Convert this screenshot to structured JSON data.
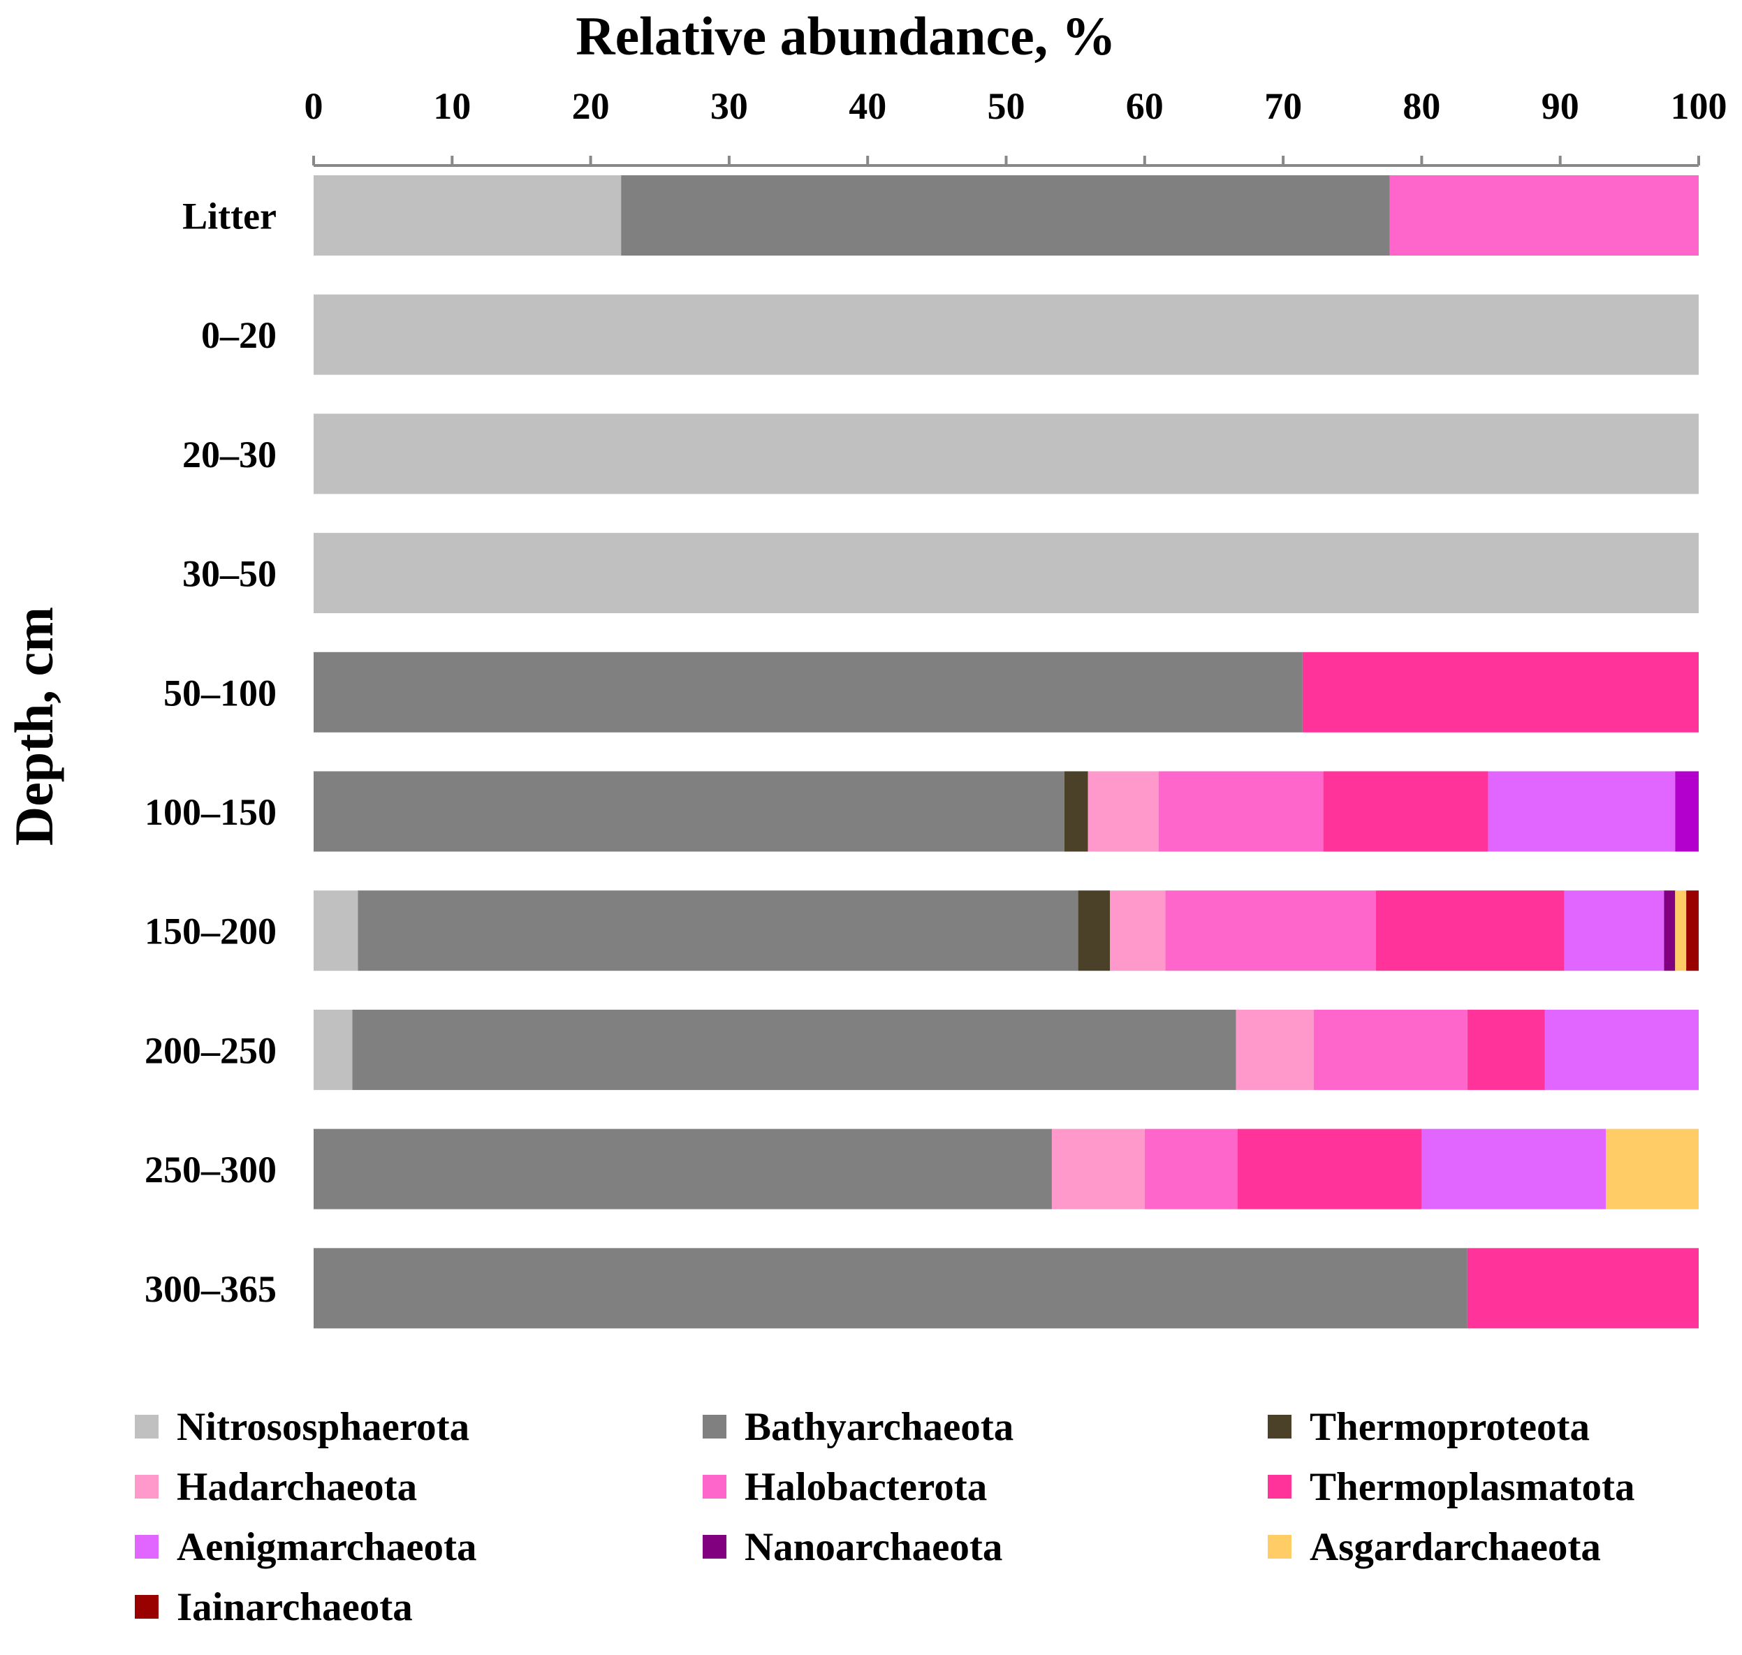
{
  "chart_data": {
    "type": "bar",
    "orientation": "horizontal",
    "stacked": true,
    "title": "Relative abundance, %",
    "xlabel": "Relative abundance, %",
    "ylabel": "Depth, cm",
    "xlim": [
      0,
      100
    ],
    "x_ticks": [
      "0",
      "10",
      "20",
      "30",
      "40",
      "50",
      "60",
      "70",
      "80",
      "90",
      "100"
    ],
    "x_axis_position": "top",
    "grid": false,
    "legend_position": "bottom",
    "categories": [
      "Litter",
      "0–20",
      "20–30",
      "30–50",
      "50–100",
      "100–150",
      "150–200",
      "200–250",
      "250–300",
      "300–365"
    ],
    "series": [
      {
        "name": "Nitrososphaerota",
        "color": "#C0C0C0",
        "values": [
          22.2,
          100,
          100,
          100,
          0,
          0,
          3.2,
          2.8,
          0,
          0
        ]
      },
      {
        "name": "Bathyarchaeota",
        "color": "#808080",
        "values": [
          55.5,
          0,
          0,
          0,
          71.4,
          54.2,
          52.0,
          63.8,
          53.3,
          83.3
        ]
      },
      {
        "name": "Thermoproteota",
        "color": "#4B4128",
        "values": [
          0,
          0,
          0,
          0,
          0,
          1.7,
          2.3,
          0,
          0,
          0
        ]
      },
      {
        "name": "Hadarchaeota",
        "color": "#FF99CC",
        "values": [
          0,
          0,
          0,
          0,
          0,
          5.1,
          4.0,
          5.6,
          6.7,
          0
        ]
      },
      {
        "name": "Halobacterota",
        "color": "#FF66CC",
        "values": [
          22.3,
          0,
          0,
          0,
          0,
          11.9,
          15.2,
          11.1,
          6.7,
          0
        ]
      },
      {
        "name": "Thermoplasmatota",
        "color": "#FF3399",
        "values": [
          0,
          0,
          0,
          0,
          28.6,
          11.9,
          13.6,
          5.6,
          13.3,
          16.7
        ]
      },
      {
        "name": "Aenigmarchaeota",
        "color": "#E066FF",
        "values": [
          0,
          0,
          0,
          0,
          0,
          13.5,
          7.2,
          11.1,
          13.3,
          0
        ]
      },
      {
        "name": "Nanoarchaeota",
        "color": "#800080",
        "values": [
          0,
          0,
          0,
          0,
          0,
          0,
          0.8,
          0,
          0,
          0
        ]
      },
      {
        "name": "Asgardarchaeota",
        "color": "#FFCC66",
        "values": [
          0,
          0,
          0,
          0,
          0,
          0,
          0.8,
          0,
          6.7,
          0
        ]
      },
      {
        "name": "Iainarchaeota",
        "color": "#990000",
        "values": [
          0,
          0,
          0,
          0,
          0,
          0,
          0.9,
          0,
          0,
          0
        ]
      },
      {
        "name": "",
        "color": "#B300CC",
        "values": [
          0,
          0,
          0,
          0,
          0,
          1.7,
          0,
          0,
          0,
          0
        ]
      }
    ]
  }
}
